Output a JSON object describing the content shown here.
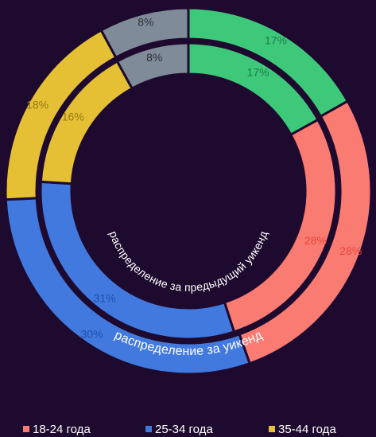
{
  "chart_data": {
    "type": "nested-donut",
    "categories": [
      null,
      "18-24 года",
      "25-34 года",
      "35-44 года",
      null
    ],
    "colors": [
      "#3ec97a",
      "#f97b72",
      "#4179df",
      "#e5c035",
      "#7f8b98"
    ],
    "label_colors": [
      "#1e7a45",
      "#e8463d",
      "#1f4fa8",
      "#9a7a12",
      "#2c2f3a"
    ],
    "series": [
      {
        "name": "распределение за уикенд",
        "values": [
          17,
          28,
          30,
          18,
          8
        ],
        "value_labels": [
          "17%",
          "28%",
          "30%",
          "18%",
          "8%"
        ]
      },
      {
        "name": "распределение за предыдущий уикенд",
        "values": [
          17,
          28,
          31,
          16,
          8
        ],
        "value_labels": [
          "17%",
          "28%",
          "31%",
          "16%",
          "8%"
        ]
      }
    ],
    "legend": "bottom"
  }
}
